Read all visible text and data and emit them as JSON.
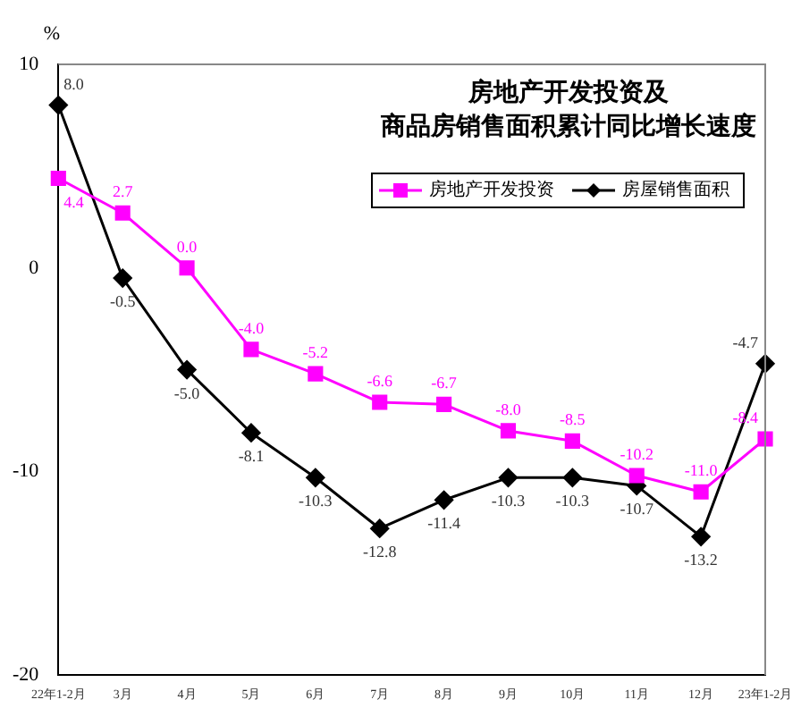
{
  "chart_data": {
    "type": "line",
    "title": "房地产开发投资及",
    "subtitle": "商品房销售面积累计同比增长速度",
    "ylabel": "%",
    "categories": [
      "22年1-2月",
      "3月",
      "4月",
      "5月",
      "6月",
      "7月",
      "8月",
      "9月",
      "10月",
      "11月",
      "12月",
      "23年1-2月"
    ],
    "series": [
      {
        "name": "房地产开发投资",
        "color": "#ff00ff",
        "marker": "square",
        "values": [
          4.4,
          2.7,
          0.0,
          -4.0,
          -5.2,
          -6.6,
          -6.7,
          -8.0,
          -8.5,
          -10.2,
          -11.0,
          -8.4
        ],
        "value_labels": [
          "4.4",
          "2.7",
          "0.0",
          "-4.0",
          "-5.2",
          "-6.6",
          "-6.7",
          "-8.0",
          "-8.5",
          "-10.2",
          "-11.0",
          "-8.4"
        ]
      },
      {
        "name": "房屋销售面积",
        "color": "#000000",
        "marker": "diamond",
        "values": [
          8.0,
          -0.5,
          -5.0,
          -8.1,
          -10.3,
          -12.8,
          -11.4,
          -10.3,
          -10.3,
          -10.7,
          -13.2,
          -4.7
        ],
        "value_labels": [
          "8.0",
          "-0.5",
          "-5.0",
          "-8.1",
          "-10.3",
          "-12.8",
          "-11.4",
          "-10.3",
          "-10.3",
          "-10.7",
          "-13.2",
          "-4.7"
        ]
      }
    ],
    "ylim": [
      -20,
      10
    ],
    "yticks": [
      -20,
      -10,
      0,
      10
    ],
    "grid": false,
    "legend": "top right"
  }
}
